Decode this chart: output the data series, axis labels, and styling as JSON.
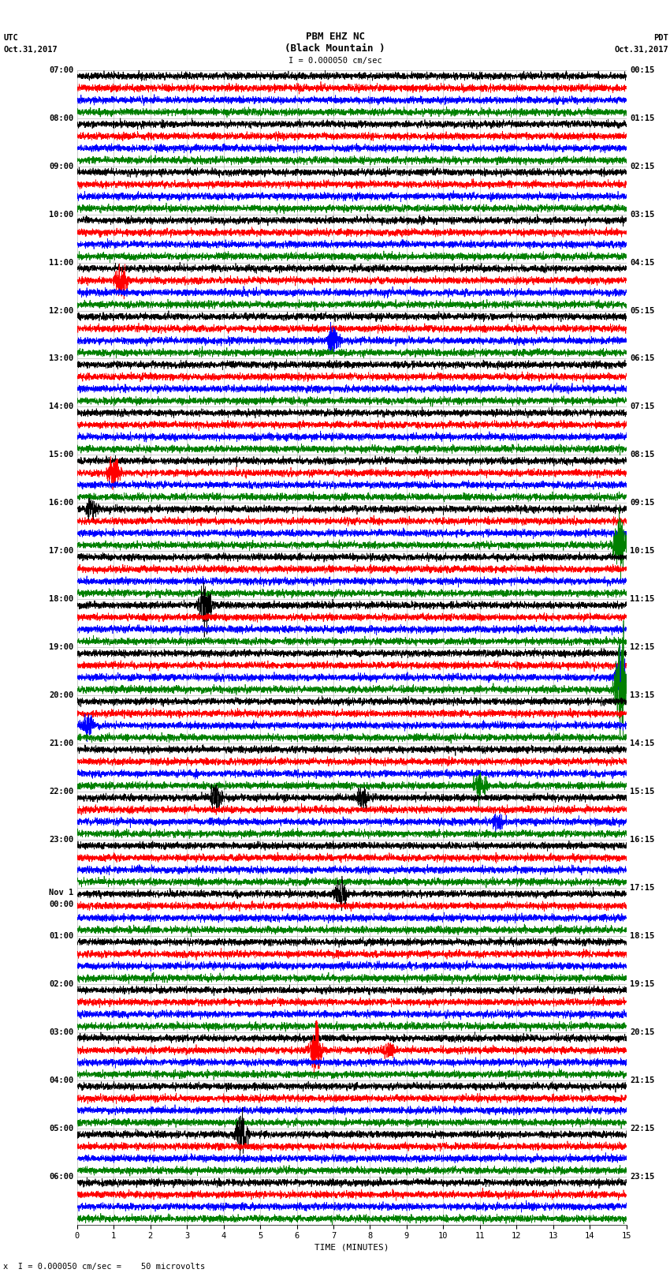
{
  "title_line1": "PBM EHZ NC",
  "title_line2": "(Black Mountain )",
  "scale_label": "I = 0.000050 cm/sec",
  "utc_label": "UTC",
  "utc_date": "Oct.31,2017",
  "pdt_label": "PDT",
  "pdt_date": "Oct.31,2017",
  "xlabel": "TIME (MINUTES)",
  "bottom_label": "x  I = 0.000050 cm/sec =    50 microvolts",
  "bg_color": "#ffffff",
  "trace_colors": [
    "black",
    "red",
    "blue",
    "green"
  ],
  "left_times_utc": [
    "07:00",
    "08:00",
    "09:00",
    "10:00",
    "11:00",
    "12:00",
    "13:00",
    "14:00",
    "15:00",
    "16:00",
    "17:00",
    "18:00",
    "19:00",
    "20:00",
    "21:00",
    "22:00",
    "23:00",
    "Nov 1\n00:00",
    "01:00",
    "02:00",
    "03:00",
    "04:00",
    "05:00",
    "06:00"
  ],
  "right_times_pdt": [
    "00:15",
    "01:15",
    "02:15",
    "03:15",
    "04:15",
    "05:15",
    "06:15",
    "07:15",
    "08:15",
    "09:15",
    "10:15",
    "11:15",
    "12:15",
    "13:15",
    "14:15",
    "15:15",
    "16:15",
    "17:15",
    "18:15",
    "19:15",
    "20:15",
    "21:15",
    "22:15",
    "23:15"
  ],
  "num_rows": 24,
  "traces_per_row": 4,
  "xmin": 0,
  "xmax": 15,
  "noise_amplitude": 0.035,
  "grid_color": "#aaaaaa",
  "grid_linewidth": 0.4,
  "trace_linewidth": 0.5,
  "tick_fontsize": 7.5,
  "label_fontsize": 8,
  "title_fontsize": 9,
  "special_events": [
    [
      4,
      1,
      1.2,
      6.0
    ],
    [
      5,
      2,
      7.0,
      5.0
    ],
    [
      8,
      1,
      1.0,
      6.0
    ],
    [
      9,
      0,
      0.4,
      4.0
    ],
    [
      9,
      3,
      14.8,
      10.0
    ],
    [
      11,
      0,
      3.5,
      8.0
    ],
    [
      12,
      3,
      14.85,
      16.0
    ],
    [
      12,
      2,
      14.85,
      8.0
    ],
    [
      13,
      2,
      0.3,
      4.0
    ],
    [
      14,
      3,
      11.0,
      5.0
    ],
    [
      15,
      0,
      3.8,
      5.0
    ],
    [
      15,
      0,
      7.8,
      4.0
    ],
    [
      15,
      2,
      11.5,
      3.0
    ],
    [
      17,
      0,
      7.2,
      6.0
    ],
    [
      20,
      1,
      6.5,
      8.0
    ],
    [
      20,
      1,
      8.5,
      3.0
    ],
    [
      22,
      0,
      4.5,
      8.0
    ]
  ]
}
